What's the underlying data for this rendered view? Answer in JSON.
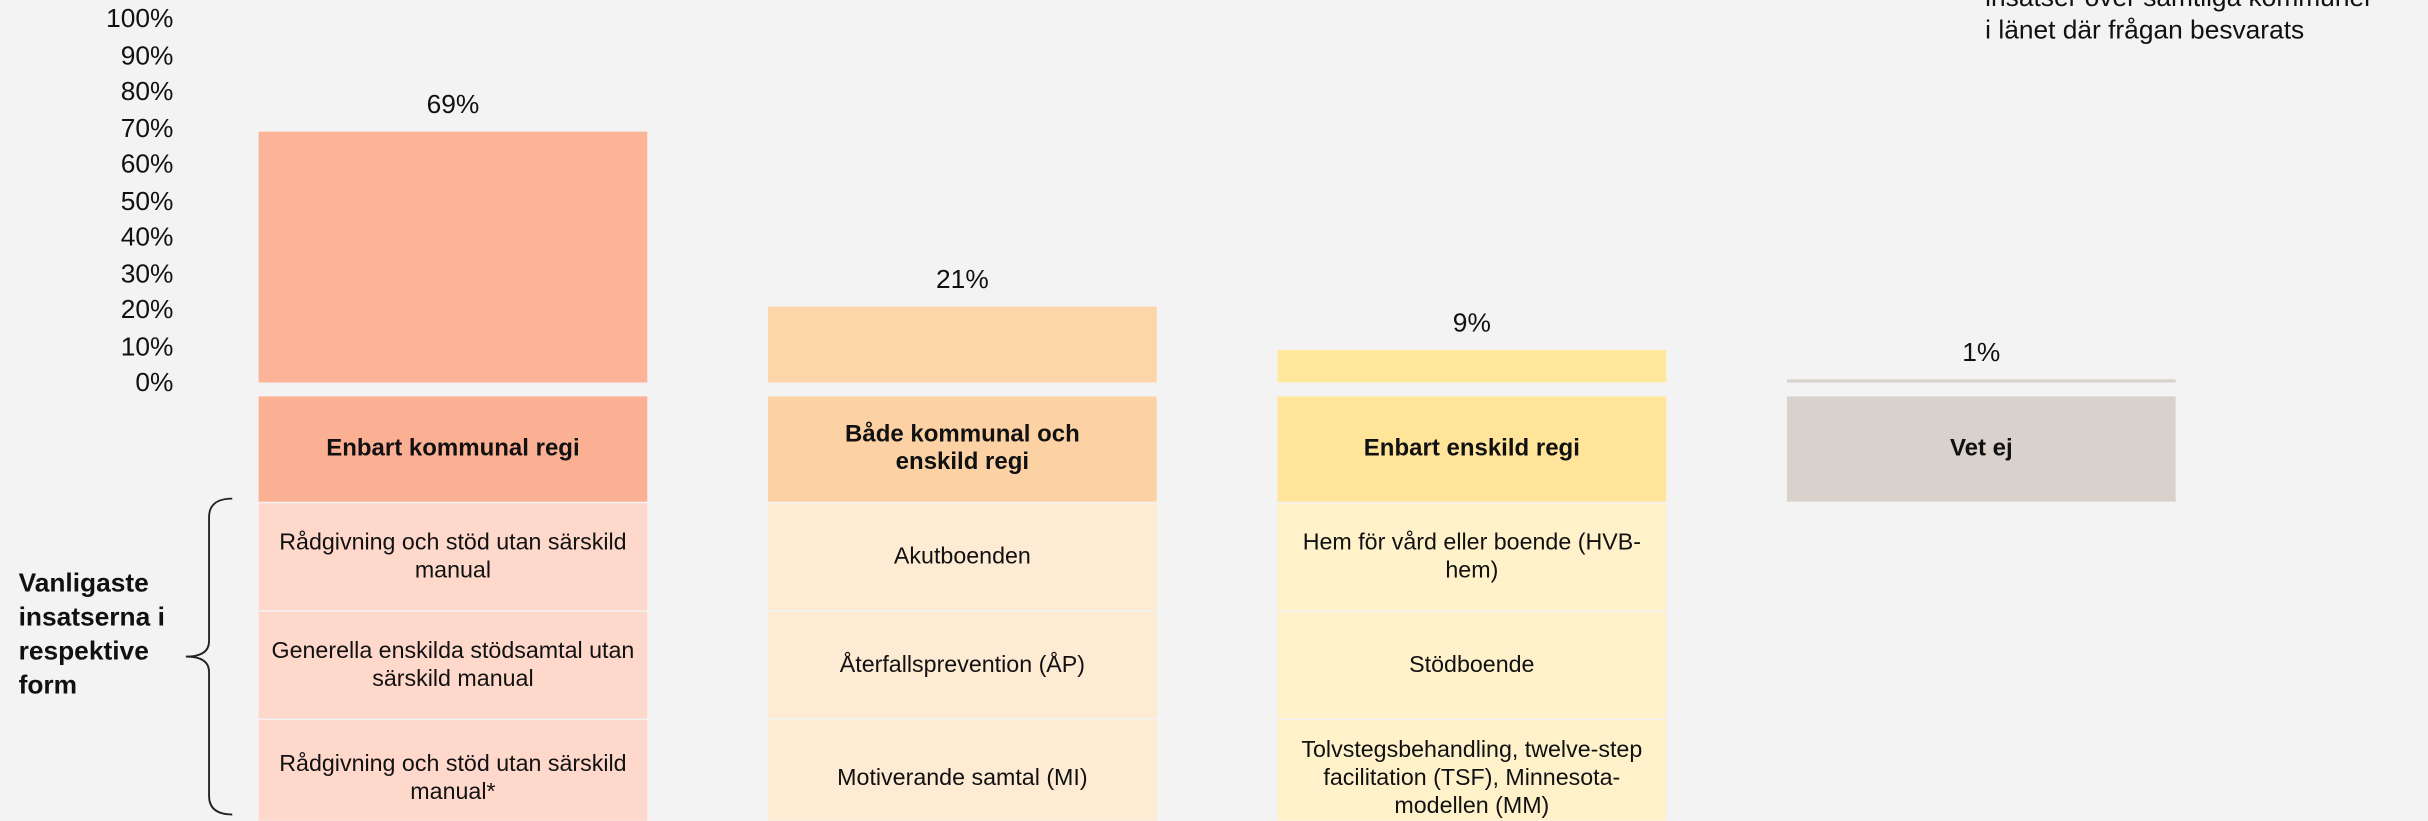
{
  "chart_data": {
    "type": "bar",
    "categories": [
      "Enbart kommunal regi",
      "Både kommunal och enskild regi",
      "Enbart enskild regi",
      "Vet ej"
    ],
    "values": [
      69,
      21,
      9,
      1
    ],
    "value_labels": [
      "69%",
      "21%",
      "9%",
      "1%"
    ],
    "colors": [
      "#fcb499",
      "#fcd5a8",
      "#ffe89c",
      "#d8d2cc"
    ],
    "header_colors": [
      "#fcb093",
      "#fcd2a5",
      "#ffe49a",
      "#d9d2cc"
    ],
    "ylim": [
      0,
      100
    ],
    "yticks": [
      {
        "value": 0,
        "label": "0%"
      },
      {
        "value": 10,
        "label": "10%"
      },
      {
        "value": 20,
        "label": "20%"
      },
      {
        "value": 30,
        "label": "30%"
      },
      {
        "value": 40,
        "label": "40%"
      },
      {
        "value": 50,
        "label": "50%"
      },
      {
        "value": 60,
        "label": "60%"
      },
      {
        "value": 70,
        "label": "70%"
      },
      {
        "value": 80,
        "label": "80%"
      },
      {
        "value": 90,
        "label": "90%"
      },
      {
        "value": 100,
        "label": "100%"
      }
    ]
  },
  "table": {
    "row_colors": [
      "#fed8cb",
      "#feebd3",
      "#fff2cb"
    ],
    "columns": [
      [
        "Rådgivning och stöd utan särskild manual",
        "Generella enskilda stödsamtal utan särskild manual",
        "Rådgivning och stöd utan särskild manual*"
      ],
      [
        "Akutboenden",
        "Återfallsprevention (ÅP)",
        "Motiverande samtal (MI)"
      ],
      [
        "Hem för vård eller boende (HVB-hem)",
        "Stödboende",
        "Tolvstegsbehandling, twelve-step facilitation (TSF), Minnesota-modellen (MM)"
      ]
    ]
  },
  "side_label": "Vanligaste insatserna i respektive form",
  "note": [
    "insatser över samtliga kommuner",
    "i länet där frågan besvarats"
  ]
}
